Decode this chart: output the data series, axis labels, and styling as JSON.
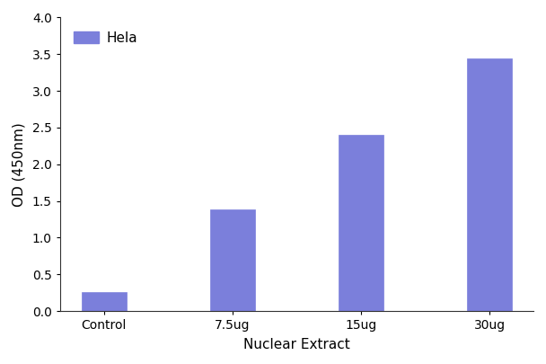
{
  "categories": [
    "Control",
    "7.5ug",
    "15ug",
    "30ug"
  ],
  "values": [
    0.26,
    1.38,
    2.4,
    3.44
  ],
  "bar_color": "#7b7fdb",
  "xlabel": "Nuclear Extract",
  "ylabel": "OD (450nm)",
  "ylim": [
    0,
    4.0
  ],
  "yticks": [
    0.0,
    0.5,
    1.0,
    1.5,
    2.0,
    2.5,
    3.0,
    3.5,
    4.0
  ],
  "legend_label": "Hela",
  "bar_width": 0.35,
  "background_color": "#ffffff",
  "tick_label_fontsize": 10,
  "axis_label_fontsize": 11,
  "legend_fontsize": 11,
  "figsize": [
    6.08,
    4.05
  ],
  "dpi": 100
}
